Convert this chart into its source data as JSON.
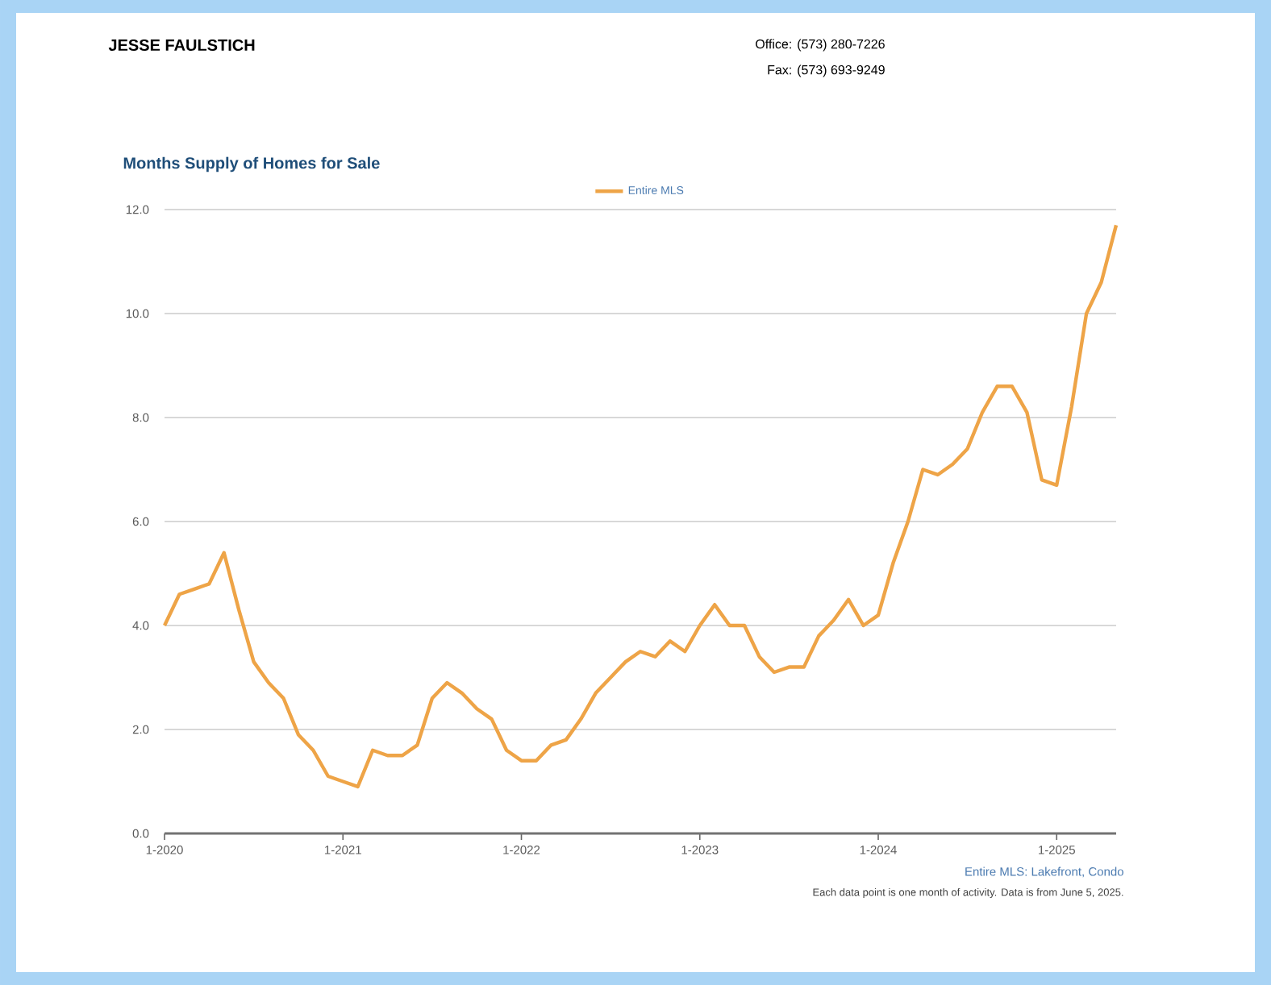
{
  "chart_data": {
    "type": "line",
    "title": "Months Supply of Homes for Sale",
    "x": [
      "2020-01",
      "2020-02",
      "2020-03",
      "2020-04",
      "2020-05",
      "2020-06",
      "2020-07",
      "2020-08",
      "2020-09",
      "2020-10",
      "2020-11",
      "2020-12",
      "2021-01",
      "2021-02",
      "2021-03",
      "2021-04",
      "2021-05",
      "2021-06",
      "2021-07",
      "2021-08",
      "2021-09",
      "2021-10",
      "2021-11",
      "2021-12",
      "2022-01",
      "2022-02",
      "2022-03",
      "2022-04",
      "2022-05",
      "2022-06",
      "2022-07",
      "2022-08",
      "2022-09",
      "2022-10",
      "2022-11",
      "2022-12",
      "2023-01",
      "2023-02",
      "2023-03",
      "2023-04",
      "2023-05",
      "2023-06",
      "2023-07",
      "2023-08",
      "2023-09",
      "2023-10",
      "2023-11",
      "2023-12",
      "2024-01",
      "2024-02",
      "2024-03",
      "2024-04",
      "2024-05",
      "2024-06",
      "2024-07",
      "2024-08",
      "2024-09",
      "2024-10",
      "2024-11",
      "2024-12",
      "2025-01",
      "2025-02",
      "2025-03",
      "2025-04",
      "2025-05"
    ],
    "series": [
      {
        "name": "Entire MLS",
        "color": "#eea447",
        "values": [
          4.0,
          4.6,
          4.7,
          4.8,
          5.4,
          4.3,
          3.3,
          2.9,
          2.6,
          1.9,
          1.6,
          1.1,
          1.0,
          0.9,
          1.6,
          1.5,
          1.5,
          1.7,
          2.6,
          2.9,
          2.7,
          2.4,
          2.2,
          1.6,
          1.4,
          1.4,
          1.7,
          1.8,
          2.2,
          2.7,
          3.0,
          3.3,
          3.5,
          3.4,
          3.7,
          3.5,
          4.0,
          4.4,
          4.0,
          4.0,
          3.4,
          3.1,
          3.2,
          3.2,
          3.8,
          4.1,
          4.5,
          4.0,
          4.2,
          5.2,
          6.0,
          7.0,
          6.9,
          7.1,
          7.4,
          8.1,
          8.6,
          8.6,
          8.1,
          6.8,
          6.7,
          8.2,
          10.0,
          10.6,
          11.7
        ]
      }
    ],
    "xlim": [
      "2020-01",
      "2025-05"
    ],
    "xticks": [
      {
        "value": "2020-01",
        "label": "1-2020"
      },
      {
        "value": "2021-01",
        "label": "1-2021"
      },
      {
        "value": "2022-01",
        "label": "1-2022"
      },
      {
        "value": "2023-01",
        "label": "1-2023"
      },
      {
        "value": "2024-01",
        "label": "1-2024"
      },
      {
        "value": "2025-01",
        "label": "1-2025"
      }
    ],
    "ylim": [
      0,
      12
    ],
    "yticks": [
      {
        "value": 0,
        "label": "0.0"
      },
      {
        "value": 2,
        "label": "2.0"
      },
      {
        "value": 4,
        "label": "4.0"
      },
      {
        "value": 6,
        "label": "6.0"
      },
      {
        "value": 8,
        "label": "8.0"
      },
      {
        "value": 10,
        "label": "10.0"
      },
      {
        "value": 12,
        "label": "12.0"
      }
    ],
    "grid": "y",
    "legend": "top",
    "marker": "none",
    "line_style": "solid",
    "annotations": [
      "JESSE FAULSTICH",
      "Office: (573) 280-7226",
      "Fax: (573) 693-9249",
      "Entire MLS: Lakefront, Condo",
      "Each data point is one month of activity. Data is from June 5, 2025."
    ]
  }
}
